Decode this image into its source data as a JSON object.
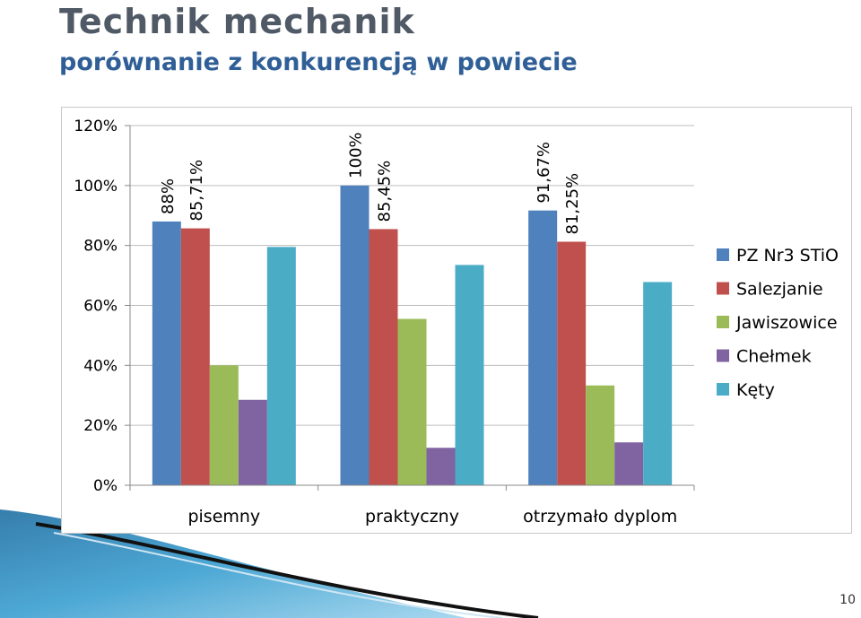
{
  "slide": {
    "title": "Technik mechanik",
    "subtitle": "porównanie z konkurencją w powiecie",
    "page_number": "10"
  },
  "chart_data": {
    "type": "bar",
    "categories": [
      "pisemny",
      "praktyczny",
      "otrzymało dyplom"
    ],
    "ylim": [
      0,
      120
    ],
    "yticks": [
      "0%",
      "20%",
      "40%",
      "60%",
      "80%",
      "100%",
      "120%"
    ],
    "grid": true,
    "legend_position": "right",
    "series": [
      {
        "name": "PZ Nr3 STiO",
        "color": "#4f81bd",
        "values": [
          88,
          100,
          91.67
        ],
        "labels": [
          "88%",
          "100%",
          "91,67%"
        ]
      },
      {
        "name": "Salezjanie",
        "color": "#c0504d",
        "values": [
          85.71,
          85.45,
          81.25
        ],
        "labels": [
          "85,71%",
          "85,45%",
          "81,25%"
        ]
      },
      {
        "name": "Jawiszowice",
        "color": "#9bbb59",
        "values": [
          40,
          55.5,
          33.3
        ],
        "labels": [
          "",
          "",
          ""
        ]
      },
      {
        "name": "Chełmek",
        "color": "#8064a2",
        "values": [
          28.5,
          12.5,
          14.3
        ],
        "labels": [
          "",
          "",
          ""
        ]
      },
      {
        "name": "Kęty",
        "color": "#4bacc6",
        "values": [
          79.5,
          73.5,
          67.8
        ],
        "labels": [
          "",
          "",
          ""
        ]
      }
    ]
  }
}
